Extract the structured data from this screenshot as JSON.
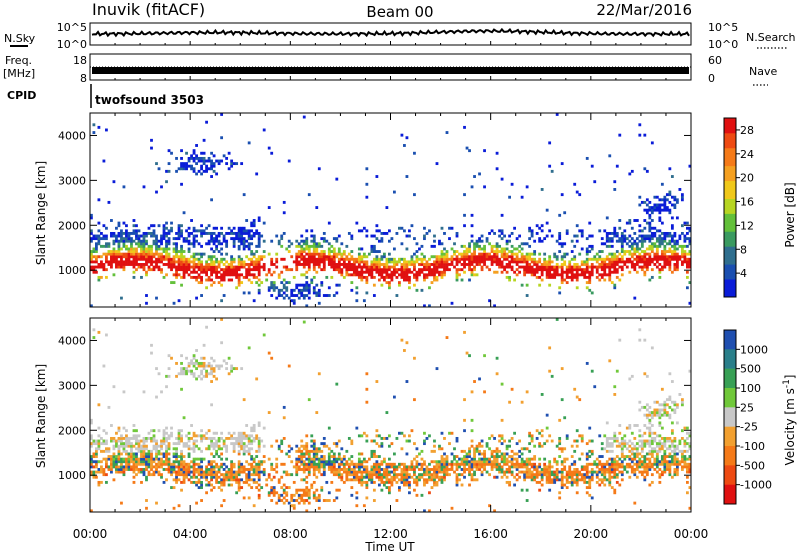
{
  "header": {
    "title": "Inuvik (fitACF)",
    "beam": "Beam 00",
    "date": "22/Mar/2016"
  },
  "top_panels": {
    "nsky_label": "N.Sky",
    "nsky_ticks": [
      "10^5",
      "10^0"
    ],
    "nsearch_label": "N.Search",
    "nsearch_ticks": [
      "10^5",
      "10^0"
    ],
    "freq_label_line1": "Freq.",
    "freq_label_line2": "[MHz]",
    "freq_ticks": [
      "18",
      "8"
    ],
    "nave_label": "Nave",
    "nave_ticks": [
      "60",
      "0"
    ],
    "cpid_label": "CPID",
    "cpid_value": "twofsound 3503"
  },
  "chart_data": [
    {
      "type": "heatmap",
      "title": "",
      "xlabel": "",
      "ylabel": "Slant Range [km]",
      "x_ticks": [
        "00:00",
        "04:00",
        "08:00",
        "12:00",
        "16:00",
        "20:00",
        "00:00"
      ],
      "xlim_hours": [
        0,
        24
      ],
      "ylim": [
        180,
        4500
      ],
      "y_ticks": [
        1000,
        2000,
        3000,
        4000
      ],
      "colorbar": {
        "label": "Power [dB]",
        "ticks": [
          4,
          8,
          12,
          16,
          20,
          24,
          28
        ],
        "range": [
          0,
          30
        ],
        "colors": [
          "#0a1cd8",
          "#1a4fb0",
          "#2f6e8e",
          "#3a9a60",
          "#63c03a",
          "#b7d522",
          "#f0c81a",
          "#f5a020",
          "#f57a18",
          "#ee4a12",
          "#e01010"
        ]
      }
    },
    {
      "type": "heatmap",
      "title": "",
      "xlabel": "Time UT",
      "ylabel": "Slant Range [km]",
      "x_ticks": [
        "00:00",
        "04:00",
        "08:00",
        "12:00",
        "16:00",
        "20:00",
        "00:00"
      ],
      "xlim_hours": [
        0,
        24
      ],
      "ylim": [
        180,
        4500
      ],
      "y_ticks": [
        1000,
        2000,
        3000,
        4000
      ],
      "colorbar": {
        "label": "Velocity [m s^-1]",
        "ticks": [
          1000,
          500,
          100,
          25,
          -25,
          -100,
          -500,
          -1000
        ],
        "bands": [
          "#1f4fb0",
          "#2a7f8a",
          "#38a055",
          "#70c83a",
          "#c8c8c8",
          "#f2a030",
          "#f57a18",
          "#ee4a12",
          "#e01010"
        ]
      }
    }
  ]
}
